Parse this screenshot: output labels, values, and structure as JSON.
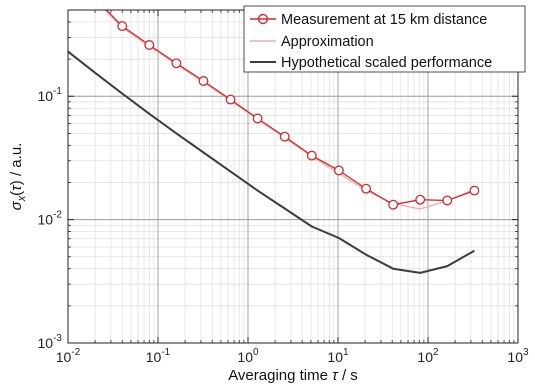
{
  "chart_data": {
    "type": "line",
    "xscale": "log",
    "yscale": "log",
    "xlim": [
      0.01,
      1000
    ],
    "ylim": [
      0.001,
      0.5
    ],
    "grid": true,
    "minor_grid": true,
    "xlabel": {
      "pre": "Averaging time ",
      "sym": "τ",
      "post": " / s"
    },
    "ylabel": {
      "pre": "σ",
      "sub": "x",
      "mid": "(",
      "sym": "τ",
      "post": ")  / a.u."
    },
    "x_ticks": [
      {
        "base": "10",
        "exp": "-2"
      },
      {
        "base": "10",
        "exp": "-1"
      },
      {
        "base": "10",
        "exp": "0"
      },
      {
        "base": "10",
        "exp": "1"
      },
      {
        "base": "10",
        "exp": "2"
      },
      {
        "base": "10",
        "exp": "3"
      }
    ],
    "y_ticks": [
      {
        "base": "10",
        "exp": "-3"
      },
      {
        "base": "10",
        "exp": "-2"
      },
      {
        "base": "10",
        "exp": "-1"
      }
    ],
    "legend_position": "top-right",
    "series": [
      {
        "name": "Measurement at 15 km distance",
        "color": "#d42a2a",
        "marker": "circle",
        "points": [
          [
            0.02,
            0.62
          ],
          [
            0.04,
            0.37
          ],
          [
            0.08,
            0.26
          ],
          [
            0.16,
            0.185
          ],
          [
            0.32,
            0.133
          ],
          [
            0.64,
            0.094
          ],
          [
            1.28,
            0.066
          ],
          [
            2.56,
            0.047
          ],
          [
            5.12,
            0.033
          ],
          [
            10.24,
            0.025
          ],
          [
            20.5,
            0.0178
          ],
          [
            41,
            0.0132
          ],
          [
            82,
            0.0145
          ],
          [
            164,
            0.0143
          ],
          [
            328,
            0.0172
          ]
        ]
      },
      {
        "name": "Approximation",
        "color": "#f2a8a8",
        "marker": "none",
        "points": [
          [
            0.02,
            0.6
          ],
          [
            0.04,
            0.36
          ],
          [
            0.08,
            0.255
          ],
          [
            0.16,
            0.182
          ],
          [
            0.32,
            0.13
          ],
          [
            0.64,
            0.092
          ],
          [
            1.28,
            0.065
          ],
          [
            2.56,
            0.046
          ],
          [
            5.12,
            0.0325
          ],
          [
            10.24,
            0.0238
          ],
          [
            20.5,
            0.0172
          ],
          [
            41,
            0.0135
          ],
          [
            82,
            0.0122
          ],
          [
            164,
            0.0142
          ],
          [
            328,
            0.0176
          ]
        ]
      },
      {
        "name": "Hypothetical scaled performance",
        "color": "#3c3c3c",
        "marker": "none",
        "points": [
          [
            0.01,
            0.23
          ],
          [
            0.02,
            0.155
          ],
          [
            0.04,
            0.105
          ],
          [
            0.08,
            0.072
          ],
          [
            0.16,
            0.05
          ],
          [
            0.32,
            0.035
          ],
          [
            0.64,
            0.0245
          ],
          [
            1.28,
            0.0172
          ],
          [
            2.56,
            0.0123
          ],
          [
            5.12,
            0.0088
          ],
          [
            10.24,
            0.0071
          ],
          [
            20.5,
            0.0052
          ],
          [
            41,
            0.004
          ],
          [
            82,
            0.0037
          ],
          [
            164,
            0.0042
          ],
          [
            328,
            0.0056
          ]
        ]
      }
    ]
  }
}
